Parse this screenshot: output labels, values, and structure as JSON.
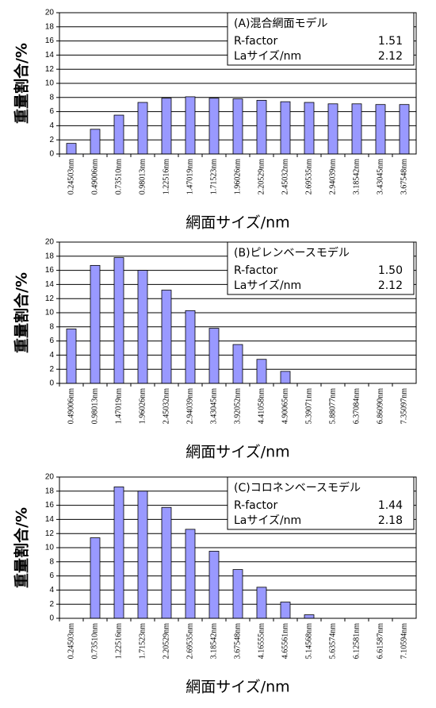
{
  "chart_data": [
    {
      "type": "bar",
      "y_label": "重量割合/%",
      "x_label": "網面サイズ/nm",
      "color": "#9999ff",
      "grid": true,
      "ylim": [
        0,
        20
      ],
      "yticks": [
        0,
        2,
        4,
        6,
        8,
        10,
        12,
        14,
        16,
        18,
        20
      ],
      "categories": [
        "0.24503nm",
        "0.49006nm",
        "0.73510nm",
        "0.98013nm",
        "1.22516nm",
        "1.47019nm",
        "1.71523nm",
        "1.96026nm",
        "2.20529nm",
        "2.45032nm",
        "2.69535nm",
        "2.94039nm",
        "3.18542nm",
        "3.43045nm",
        "3.67548nm"
      ],
      "values": [
        1.5,
        3.5,
        5.5,
        7.3,
        7.9,
        8.1,
        7.9,
        7.8,
        7.6,
        7.4,
        7.3,
        7.1,
        7.1,
        7.0,
        7.0
      ],
      "annotation": {
        "title": "(A)混合網面モデル",
        "rows": [
          [
            "R-factor",
            "1.51"
          ],
          [
            "Laサイズ/nm",
            "2.12"
          ]
        ]
      }
    },
    {
      "type": "bar",
      "y_label": "重量割合/%",
      "x_label": "網面サイズ/nm",
      "color": "#9999ff",
      "grid": true,
      "ylim": [
        0,
        20
      ],
      "yticks": [
        0,
        2,
        4,
        6,
        8,
        10,
        12,
        14,
        16,
        18,
        20
      ],
      "categories": [
        "0.49006nm",
        "0.98013nm",
        "1.47019nm",
        "1.96026nm",
        "2.45032nm",
        "2.94039nm",
        "3.43045nm",
        "3.92052nm",
        "4.41058nm",
        "4.90065nm",
        "5.39071nm",
        "5.88077nm",
        "6.37084nm",
        "6.86090nm",
        "7.35097nm"
      ],
      "values": [
        7.7,
        16.7,
        17.8,
        16.0,
        13.2,
        10.3,
        7.8,
        5.5,
        3.4,
        1.7,
        0,
        0,
        0,
        0,
        0
      ],
      "annotation": {
        "title": "(B)ピレンベースモデル",
        "rows": [
          [
            "R-factor",
            "1.50"
          ],
          [
            "Laサイズ/nm",
            "2.12"
          ]
        ]
      }
    },
    {
      "type": "bar",
      "y_label": "重量割合/%",
      "x_label": "網面サイズ/nm",
      "color": "#9999ff",
      "grid": true,
      "ylim": [
        0,
        20
      ],
      "yticks": [
        0,
        2,
        4,
        6,
        8,
        10,
        12,
        14,
        16,
        18,
        20
      ],
      "categories": [
        "0.24503nm",
        "0.73510nm",
        "1.22516nm",
        "1.71523nm",
        "2.20529nm",
        "2.69535nm",
        "3.18542nm",
        "3.67548nm",
        "4.16555nm",
        "4.65561nm",
        "5.14568nm",
        "5.63574nm",
        "6.12581nm",
        "6.61587nm",
        "7.10594nm"
      ],
      "values": [
        0,
        11.4,
        18.6,
        18.0,
        15.7,
        12.6,
        9.5,
        6.9,
        4.4,
        2.3,
        0.5,
        0,
        0,
        0,
        0
      ],
      "annotation": {
        "title": "(C)コロネンベースモデル",
        "rows": [
          [
            "R-factor",
            "1.44"
          ],
          [
            "Laサイズ/nm",
            "2.18"
          ]
        ]
      }
    }
  ]
}
